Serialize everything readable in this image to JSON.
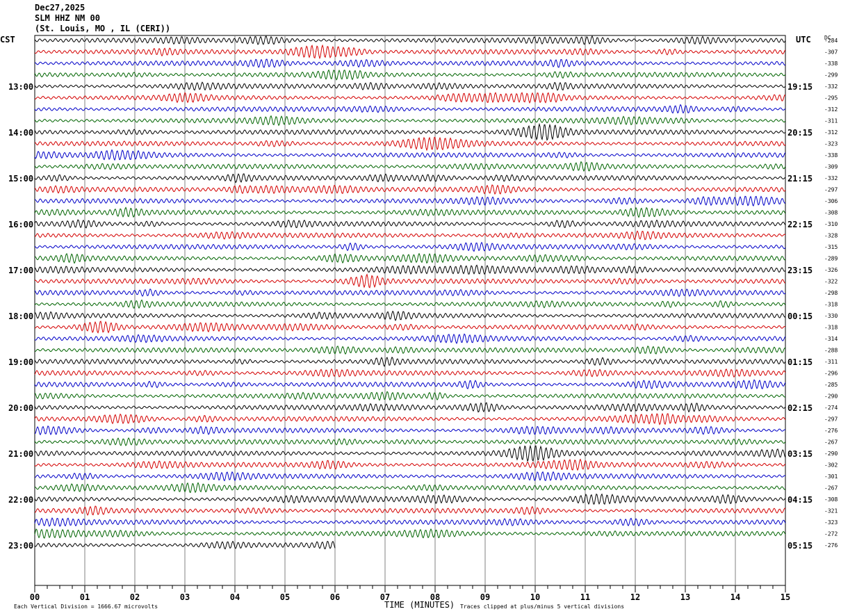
{
  "header": {
    "date": "Dec27,2025",
    "station": "SLM HHZ NM 00",
    "location": "(St. Louis, MO , IL (CERI))"
  },
  "axes": {
    "left_zone": "CST",
    "right_zone": "UTC",
    "dc_label": "DC",
    "x_label": "TIME (MINUTES)"
  },
  "footer": {
    "scale": "Each Vertical Division = 1666.67 microvolts",
    "clip": "Traces clipped at plus/minus 5 vertical divisions"
  },
  "colors": {
    "cycle": [
      "#000000",
      "#d40000",
      "#0000c8",
      "#006400"
    ],
    "grid": "#808080"
  },
  "chart_data": {
    "type": "line",
    "title": "SLM HHZ NM 00",
    "xlabel": "TIME (MINUTES)",
    "x_ticks": [
      "00",
      "01",
      "02",
      "03",
      "04",
      "05",
      "06",
      "07",
      "08",
      "09",
      "10",
      "11",
      "12",
      "13",
      "14",
      "15"
    ],
    "xlim": [
      0,
      15
    ],
    "left_hour_labels": [
      "13:00",
      "14:00",
      "15:00",
      "16:00",
      "17:00",
      "18:00",
      "19:00",
      "20:00",
      "21:00",
      "22:00",
      "23:00"
    ],
    "right_hour_labels": [
      "19:15",
      "20:15",
      "21:15",
      "22:15",
      "23:15",
      "00:15",
      "01:15",
      "02:15",
      "03:15",
      "04:15",
      "05:15"
    ],
    "dc_offsets": [
      -284,
      -307,
      -338,
      -299,
      -332,
      -295,
      -312,
      -311,
      -312,
      -323,
      -338,
      -309,
      -332,
      -297,
      -306,
      -308,
      -310,
      -328,
      -315,
      -289,
      -326,
      -322,
      -298,
      -318,
      -330,
      -318,
      -314,
      -288,
      -311,
      -296,
      -285,
      -290,
      -274,
      -297,
      -276,
      -267,
      -290,
      -302,
      -301,
      -267,
      -308,
      -321,
      -323,
      -272,
      -276
    ],
    "trace_count": 45,
    "last_trace_duration_minutes": 6,
    "color_cycle": [
      "black",
      "red",
      "blue",
      "green"
    ]
  }
}
